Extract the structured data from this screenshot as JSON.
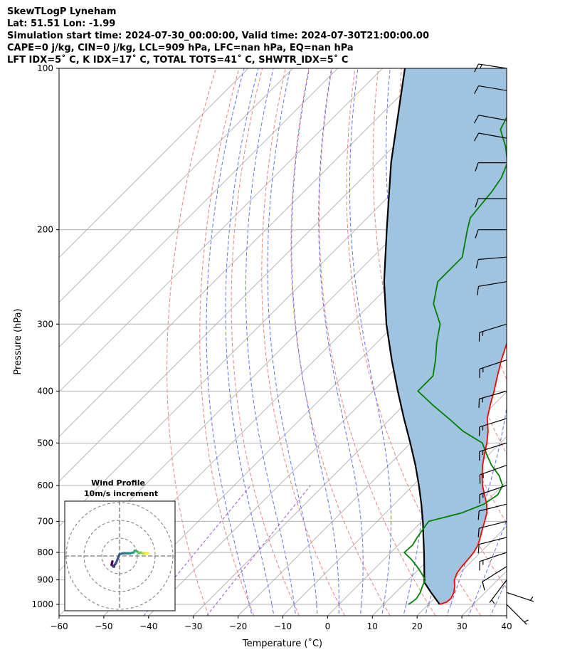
{
  "header": {
    "line1": "SkewTLogP Lyneham",
    "line2": "Lat: 51.51   Lon: -1.99",
    "line3": "Simulation start time: 2024-07-30_00:00:00, Valid time: 2024-07-30T21:00:00.00",
    "line4": "CAPE=0 j/kg, CIN=0 j/kg, LCL=909 hPa, LFC=nan hPa, EQ=nan hPa",
    "line5": "LFT IDX=5˚ C, K IDX=17˚ C, TOTAL TOTS=41˚ C, SHWTR_IDX=5˚ C"
  },
  "chart_data": {
    "type": "line",
    "subtype": "skew-t log-p",
    "xlabel": "Temperature (˚C)",
    "ylabel": "Pressure (hPa)",
    "xlim": [
      -60,
      40
    ],
    "ylim": [
      1050,
      100
    ],
    "y_scale": "log",
    "x_ticks": [
      "−60",
      "−50",
      "−40",
      "−30",
      "−20",
      "−10",
      "0",
      "10",
      "20",
      "30",
      "40"
    ],
    "y_ticks": [
      "100",
      "200",
      "300",
      "400",
      "500",
      "600",
      "700",
      "800",
      "900",
      "1000"
    ],
    "y_tick_values": [
      100,
      200,
      300,
      400,
      500,
      600,
      700,
      800,
      900,
      1000
    ],
    "grid": true,
    "colors": {
      "temperature": "#ff0000",
      "dewpoint": "#008000",
      "parcel": "#000000",
      "shade": "#a0c4e0",
      "dry_adiabat": "#f08080",
      "moist_adiabat": "#6070f0",
      "mixing_ratio": "#a050c8",
      "isotherm": "#b0b0b0"
    },
    "series": [
      {
        "key": "temperature",
        "pressure": [
          1000,
          990,
          975,
          950,
          925,
          900,
          875,
          850,
          825,
          800,
          775,
          750,
          725,
          700,
          675,
          650,
          625,
          600,
          575,
          550,
          525,
          500,
          475,
          450,
          425,
          400,
          375,
          350,
          325,
          300,
          275,
          250,
          225,
          200,
          190,
          180,
          170,
          160,
          150,
          140,
          130,
          120,
          110,
          100
        ],
        "values": [
          22.5,
          23.5,
          23.7,
          23.0,
          21.8,
          20.3,
          19.4,
          19.0,
          18.8,
          18.5,
          17.8,
          16.6,
          15.3,
          14.0,
          12.6,
          10.6,
          8.1,
          5.5,
          3.2,
          1.0,
          -1.0,
          -3.0,
          -5.4,
          -8.4,
          -10.7,
          -13.0,
          -15.6,
          -18.3,
          -20.9,
          -23.0,
          -27.0,
          -31.0,
          -36.0,
          -41.0,
          -43.0,
          -42.2,
          -39.9,
          -38.1,
          -37.5,
          -38.3,
          -39.8,
          -42.0,
          -44.8,
          -48.0
        ]
      },
      {
        "key": "dewpoint",
        "pressure": [
          1000,
          990,
          975,
          950,
          925,
          900,
          875,
          850,
          825,
          800,
          775,
          750,
          725,
          700,
          675,
          650,
          625,
          600,
          575,
          550,
          525,
          500,
          475,
          450,
          425,
          400,
          375,
          350,
          325,
          300,
          275,
          250,
          225,
          200,
          190,
          180,
          170,
          160,
          150,
          140,
          130,
          120,
          110,
          100
        ],
        "values": [
          15.5,
          15.8,
          16.0,
          15.5,
          14.6,
          13.8,
          11.5,
          9.0,
          6.2,
          3.0,
          3.2,
          2.5,
          2.0,
          1.5,
          7.0,
          10.0,
          11.0,
          10.0,
          7.0,
          3.0,
          -0.5,
          -4.0,
          -11.0,
          -17.0,
          -23.5,
          -30.0,
          -30.0,
          -33.0,
          -36.6,
          -40.0,
          -46.0,
          -50.0,
          -50.0,
          -55.0,
          -57.0,
          -57.5,
          -58.0,
          -59.0,
          -61.0,
          -65.0,
          -70.0,
          -72.0,
          -73.0,
          -75.0
        ]
      },
      {
        "key": "parcel",
        "pressure": [
          1000,
          950,
          909,
          900,
          850,
          800,
          750,
          700,
          650,
          600,
          550,
          500,
          450,
          400,
          350,
          300,
          250,
          200,
          150,
          100
        ],
        "values": [
          22.5,
          17.9,
          14.1,
          13.6,
          10.6,
          7.4,
          3.9,
          0.2,
          -4.0,
          -8.7,
          -14.0,
          -20.1,
          -27.0,
          -34.5,
          -42.8,
          -52.0,
          -62.0,
          -73.0,
          -87.0,
          -105.0
        ]
      }
    ],
    "wind_barbs": {
      "pressure": [
        1000,
        950,
        900,
        850,
        800,
        750,
        700,
        650,
        600,
        550,
        500,
        450,
        400,
        350,
        300,
        250,
        225,
        200,
        175,
        150,
        135,
        125,
        110,
        100
      ],
      "u": [
        -2,
        -3,
        3,
        8,
        12,
        12,
        12,
        12,
        12,
        14,
        16,
        16,
        14,
        12,
        13,
        12,
        12,
        12,
        12,
        12,
        11,
        11,
        12,
        13
      ],
      "v": [
        2,
        1,
        4,
        5,
        4,
        3,
        3,
        3,
        4,
        5,
        5,
        5,
        4,
        4,
        4,
        2,
        1,
        0,
        0,
        0,
        -2,
        -2,
        -2,
        -2
      ]
    },
    "wind_profile": {
      "title": "Wind Profile",
      "subtitle": "10m/s increment",
      "rings": [
        10,
        20,
        30
      ],
      "u": [
        -4,
        -4.5,
        -3,
        -3.5,
        -2,
        0,
        2,
        4,
        6,
        8,
        8.5,
        10,
        11,
        12,
        13,
        14,
        15,
        16
      ],
      "v": [
        -3,
        -5,
        -6,
        -6,
        -4,
        1,
        1.5,
        1.5,
        1.5,
        2,
        3,
        2.5,
        1.5,
        2,
        1.5,
        1.5,
        1.5,
        1.5
      ]
    }
  }
}
